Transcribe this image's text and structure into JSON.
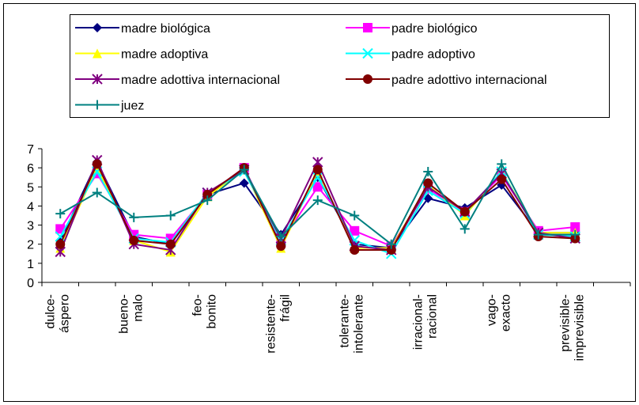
{
  "chart_data": {
    "type": "line",
    "categories": [
      "dulce-áspero",
      null,
      "bueno-malo",
      null,
      "feo-bonito",
      null,
      "resistente-frágil",
      null,
      "tolerante-intolerante",
      null,
      "irracional-racional",
      null,
      "vago-exacto",
      null,
      "previsible-imprevisible",
      null
    ],
    "ylim": [
      0,
      7
    ],
    "yticks": [
      0,
      1,
      2,
      3,
      4,
      5,
      6,
      7
    ],
    "grid": false,
    "series": [
      {
        "name": "madre biológica",
        "color": "#000080",
        "marker": "diamond",
        "values": [
          2.2,
          6.3,
          2.4,
          2.0,
          4.6,
          5.2,
          2.5,
          5.5,
          2.0,
          1.8,
          4.4,
          3.9,
          5.1,
          2.6,
          2.6,
          null
        ]
      },
      {
        "name": "padre biológico",
        "color": "#ff00ff",
        "marker": "square",
        "values": [
          2.8,
          5.7,
          2.5,
          2.3,
          4.6,
          6.0,
          2.1,
          5.0,
          2.7,
          1.9,
          4.9,
          3.7,
          5.6,
          2.7,
          2.9,
          null
        ]
      },
      {
        "name": "madre adoptiva",
        "color": "#ffff00",
        "marker": "triangle",
        "values": [
          1.8,
          6.0,
          2.2,
          1.6,
          4.5,
          5.9,
          1.8,
          5.8,
          1.8,
          1.8,
          5.1,
          3.5,
          5.8,
          2.6,
          2.6,
          null
        ]
      },
      {
        "name": "padre adoptivo",
        "color": "#00ffff",
        "marker": "x",
        "values": [
          2.4,
          5.8,
          2.3,
          2.1,
          4.7,
          5.8,
          2.2,
          5.5,
          2.2,
          1.5,
          4.8,
          3.6,
          5.8,
          2.5,
          2.4,
          null
        ]
      },
      {
        "name": "madre adottiva internacional",
        "color": "#800080",
        "marker": "star",
        "values": [
          1.6,
          6.4,
          2.0,
          1.7,
          4.7,
          5.9,
          2.3,
          6.3,
          1.9,
          1.7,
          5.0,
          3.7,
          5.7,
          2.6,
          2.3,
          null
        ]
      },
      {
        "name": "padre adottivo internacional",
        "color": "#800000",
        "marker": "circle",
        "values": [
          2.0,
          6.2,
          2.2,
          2.0,
          4.6,
          6.0,
          1.9,
          5.9,
          1.7,
          1.7,
          5.2,
          3.7,
          5.4,
          2.4,
          2.3,
          null
        ]
      },
      {
        "name": "juez",
        "color": "#008080",
        "marker": "plus",
        "values": [
          3.6,
          4.7,
          3.4,
          3.5,
          4.3,
          5.9,
          2.4,
          4.3,
          3.5,
          2.0,
          5.8,
          2.8,
          6.2,
          2.5,
          2.5,
          null
        ]
      }
    ]
  }
}
